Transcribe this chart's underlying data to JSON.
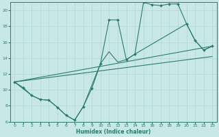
{
  "xlabel": "Humidex (Indice chaleur)",
  "bg_color": "#c8e8e8",
  "grid_color": "#b0d8d0",
  "line_color": "#2a7a6a",
  "xlim": [
    -0.5,
    23.5
  ],
  "ylim": [
    6,
    21
  ],
  "xticks": [
    0,
    1,
    2,
    3,
    4,
    5,
    6,
    7,
    8,
    9,
    10,
    11,
    12,
    13,
    14,
    15,
    16,
    17,
    18,
    19,
    20,
    21,
    22,
    23
  ],
  "yticks": [
    6,
    8,
    10,
    12,
    14,
    16,
    18,
    20
  ],
  "line1_x": [
    0,
    1,
    2,
    3,
    4,
    5,
    6,
    7,
    8,
    9,
    10,
    11,
    12,
    13,
    14,
    15,
    16,
    17,
    18,
    19,
    20,
    21,
    22,
    23
  ],
  "line1_y": [
    11,
    10.3,
    9.3,
    8.8,
    8.7,
    7.8,
    6.8,
    6.2,
    7.9,
    10.2,
    13.3,
    18.8,
    18.8,
    13.8,
    14.5,
    21.0,
    20.7,
    20.6,
    20.8,
    20.8,
    18.3,
    16.2,
    15.0,
    15.5
  ],
  "line2_x": [
    0,
    2,
    3,
    4,
    5,
    6,
    7,
    8,
    10,
    11,
    12,
    13,
    14,
    20,
    21,
    22,
    23
  ],
  "line2_y": [
    11,
    9.3,
    8.8,
    8.7,
    7.8,
    6.8,
    6.2,
    7.9,
    13.3,
    14.8,
    13.5,
    13.8,
    14.5,
    18.3,
    16.2,
    15.0,
    15.5
  ],
  "line3_x": [
    0,
    23
  ],
  "line3_y": [
    11,
    15.5
  ],
  "line4_x": [
    0,
    23
  ],
  "line4_y": [
    11,
    14.2
  ]
}
